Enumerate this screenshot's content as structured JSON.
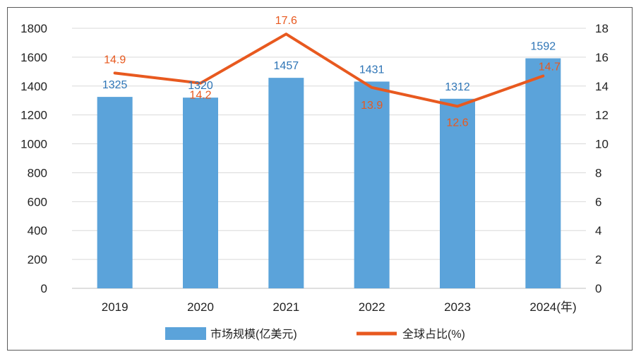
{
  "chart_data": {
    "type": "bar+line",
    "categories": [
      "2019",
      "2020",
      "2021",
      "2022",
      "2023",
      "2024"
    ],
    "x_unit_suffix": "(年)",
    "series": [
      {
        "name": "市场规模(亿美元)",
        "type": "bar",
        "axis": "left",
        "values": [
          1325,
          1320,
          1457,
          1431,
          1312,
          1592
        ],
        "labels": [
          "1325",
          "1320",
          "1457",
          "1431",
          "1312",
          "1592"
        ],
        "color": "#5BA3DA",
        "label_color": "#2E75B6"
      },
      {
        "name": "全球占比(%)",
        "type": "line",
        "axis": "right",
        "values": [
          14.9,
          14.2,
          17.6,
          13.9,
          12.6,
          14.7
        ],
        "labels": [
          "14.9",
          "14.2",
          "17.6",
          "13.9",
          "12.6",
          "14.7"
        ],
        "color": "#E8591F",
        "label_color": "#E8591F"
      }
    ],
    "y_left": {
      "min": 0,
      "max": 1800,
      "ticks": [
        "0",
        "200",
        "400",
        "600",
        "800",
        "1000",
        "1200",
        "1400",
        "1600",
        "1800"
      ]
    },
    "y_right": {
      "min": 0,
      "max": 18,
      "ticks": [
        "0",
        "2",
        "4",
        "6",
        "8",
        "10",
        "12",
        "14",
        "16",
        "18"
      ]
    },
    "grid": true,
    "legend": {
      "position": "bottom",
      "items": [
        "市场规模(亿美元)",
        "全球占比(%)"
      ]
    }
  }
}
